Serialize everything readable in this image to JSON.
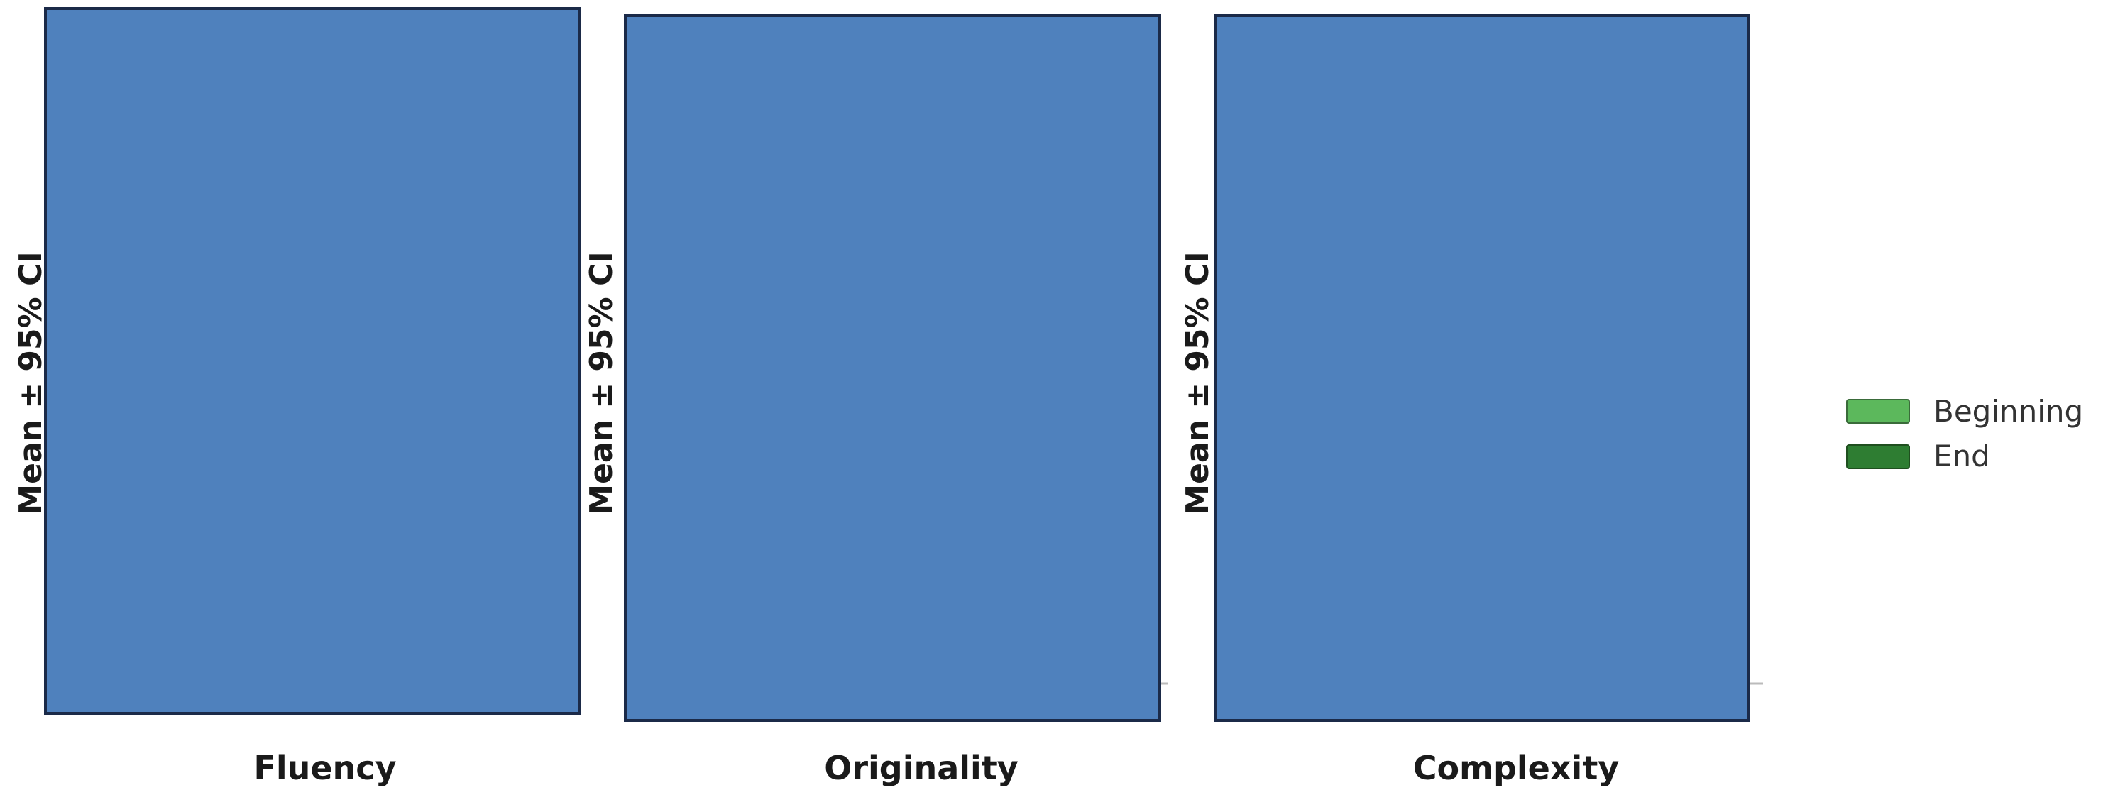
{
  "chart_data": [
    {
      "type": "bar",
      "xlabel": "Fluency",
      "ylabel": "Mean ± 95% CI",
      "series": [
        {
          "name": "Beginning",
          "color": "#5cb85c",
          "values": []
        },
        {
          "name": "End",
          "color": "#2e7d32",
          "values": []
        }
      ]
    },
    {
      "type": "bar",
      "xlabel": "Originality",
      "ylabel": "Mean ± 95% CI",
      "series": [
        {
          "name": "Beginning",
          "color": "#5cb85c",
          "values": []
        },
        {
          "name": "End",
          "color": "#2e7d32",
          "values": []
        }
      ]
    },
    {
      "type": "bar",
      "xlabel": "Complexity",
      "ylabel": "Mean ± 95% CI",
      "series": [
        {
          "name": "Beginning",
          "color": "#5cb85c",
          "values": []
        },
        {
          "name": "End",
          "color": "#2e7d32",
          "values": []
        }
      ]
    }
  ],
  "legend": {
    "placement": "right",
    "items": [
      {
        "label": "Beginning",
        "color": "#5cb85c"
      },
      {
        "label": "End",
        "color": "#2e7d32"
      }
    ]
  },
  "colors": {
    "panel_fill": "#4f81bd",
    "panel_border": "#1b2a48"
  }
}
